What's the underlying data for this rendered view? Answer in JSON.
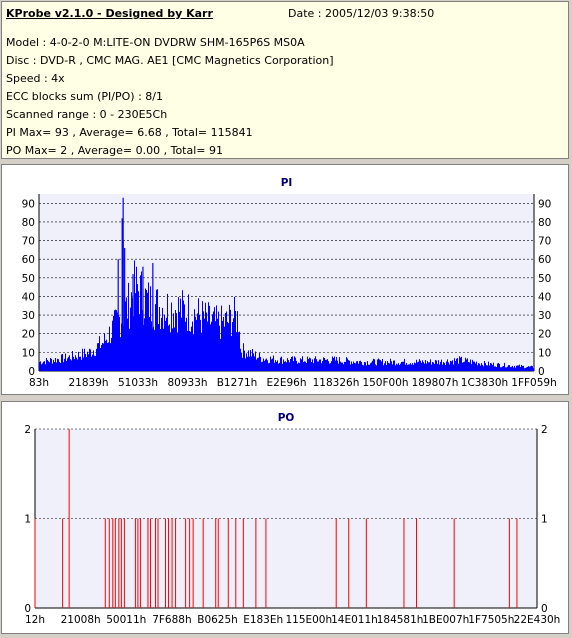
{
  "header": {
    "title": "KProbe v2.1.0 - Designed by Karr",
    "date": "Date : 2005/12/03 9:38:50",
    "lines": [
      "Model : 4-0-2-0 M:LITE-ON DVDRW SHM-165P6S MS0A",
      "Disc : DVD-R , CMC MAG. AE1 [CMC Magnetics Corporation]",
      "Speed : 4x",
      "ECC blocks sum (PI/PO) : 8/1",
      "Scanned range : 0 - 230E5Ch",
      "PI Max= 93 , Average= 6.68 , Total= 115841",
      "PO Max= 2 , Average= 0.00 , Total= 91"
    ]
  },
  "colors": {
    "pi": "#0000ff",
    "po": "#ff0000",
    "plot_bg": "#f0f0fa",
    "title": "#000080"
  },
  "chart_data": [
    {
      "type": "area",
      "title": "PI",
      "ylim": [
        0,
        95
      ],
      "yticks": [
        0,
        10,
        20,
        30,
        40,
        50,
        60,
        70,
        80,
        90
      ],
      "xlim": [
        0,
        1
      ],
      "x_tick_labels": [
        "83h",
        "21839h",
        "51033h",
        "80933h",
        "B1271h",
        "E2E96h",
        "118326h",
        "150F00h",
        "189807h",
        "1C3830h",
        "1FF059h"
      ],
      "envelope": {
        "x": [
          0,
          0.05,
          0.1,
          0.13,
          0.15,
          0.17,
          0.18,
          0.19,
          0.2,
          0.21,
          0.23,
          0.25,
          0.28,
          0.31,
          0.34,
          0.36,
          0.38,
          0.39,
          0.4,
          0.405,
          0.406,
          0.45,
          0.5,
          0.55,
          0.6,
          0.65,
          0.7,
          0.75,
          0.8,
          0.85,
          0.9,
          0.95,
          1.0
        ],
        "y": [
          5,
          7,
          10,
          16,
          24,
          32,
          36,
          44,
          45,
          40,
          36,
          35,
          34,
          32,
          28,
          26,
          27,
          30,
          29,
          28,
          12,
          7,
          6,
          6,
          6,
          5,
          5,
          5,
          5,
          6,
          4,
          3,
          2
        ]
      },
      "spikes": [
        {
          "x": 0.17,
          "y": 93
        },
        {
          "x": 0.168,
          "y": 82
        },
        {
          "x": 0.173,
          "y": 66
        },
        {
          "x": 0.19,
          "y": 52
        },
        {
          "x": 0.21,
          "y": 56
        },
        {
          "x": 0.23,
          "y": 58
        },
        {
          "x": 0.16,
          "y": 60
        },
        {
          "x": 0.17,
          "y": 70
        }
      ]
    },
    {
      "type": "bar",
      "title": "PO",
      "ylim": [
        0,
        2
      ],
      "yticks": [
        0,
        1,
        2
      ],
      "xlim": [
        0,
        1
      ],
      "x_tick_labels": [
        "12h",
        "21008h",
        "50011h",
        "7F688h",
        "B0625h",
        "E183Eh",
        "115E00h",
        "14E011h",
        "184581h",
        "1BE007h",
        "1F7505h",
        "22E430h"
      ],
      "values": [
        {
          "x": 0.0,
          "y": 1
        },
        {
          "x": 0.055,
          "y": 1
        },
        {
          "x": 0.068,
          "y": 2
        },
        {
          "x": 0.14,
          "y": 1
        },
        {
          "x": 0.148,
          "y": 1
        },
        {
          "x": 0.155,
          "y": 1
        },
        {
          "x": 0.16,
          "y": 1
        },
        {
          "x": 0.167,
          "y": 1
        },
        {
          "x": 0.172,
          "y": 1
        },
        {
          "x": 0.178,
          "y": 1
        },
        {
          "x": 0.2,
          "y": 1
        },
        {
          "x": 0.205,
          "y": 1
        },
        {
          "x": 0.21,
          "y": 1
        },
        {
          "x": 0.225,
          "y": 1
        },
        {
          "x": 0.23,
          "y": 1
        },
        {
          "x": 0.24,
          "y": 1
        },
        {
          "x": 0.245,
          "y": 1
        },
        {
          "x": 0.26,
          "y": 1
        },
        {
          "x": 0.266,
          "y": 1
        },
        {
          "x": 0.273,
          "y": 1
        },
        {
          "x": 0.28,
          "y": 1
        },
        {
          "x": 0.3,
          "y": 1
        },
        {
          "x": 0.308,
          "y": 1
        },
        {
          "x": 0.315,
          "y": 1
        },
        {
          "x": 0.335,
          "y": 1
        },
        {
          "x": 0.36,
          "y": 1
        },
        {
          "x": 0.365,
          "y": 1
        },
        {
          "x": 0.385,
          "y": 1
        },
        {
          "x": 0.4,
          "y": 1
        },
        {
          "x": 0.415,
          "y": 1
        },
        {
          "x": 0.44,
          "y": 1
        },
        {
          "x": 0.46,
          "y": 1
        },
        {
          "x": 0.6,
          "y": 1
        },
        {
          "x": 0.625,
          "y": 1
        },
        {
          "x": 0.66,
          "y": 1
        },
        {
          "x": 0.735,
          "y": 1
        },
        {
          "x": 0.76,
          "y": 1
        },
        {
          "x": 0.835,
          "y": 1
        },
        {
          "x": 0.945,
          "y": 1
        },
        {
          "x": 0.96,
          "y": 1
        }
      ]
    }
  ]
}
